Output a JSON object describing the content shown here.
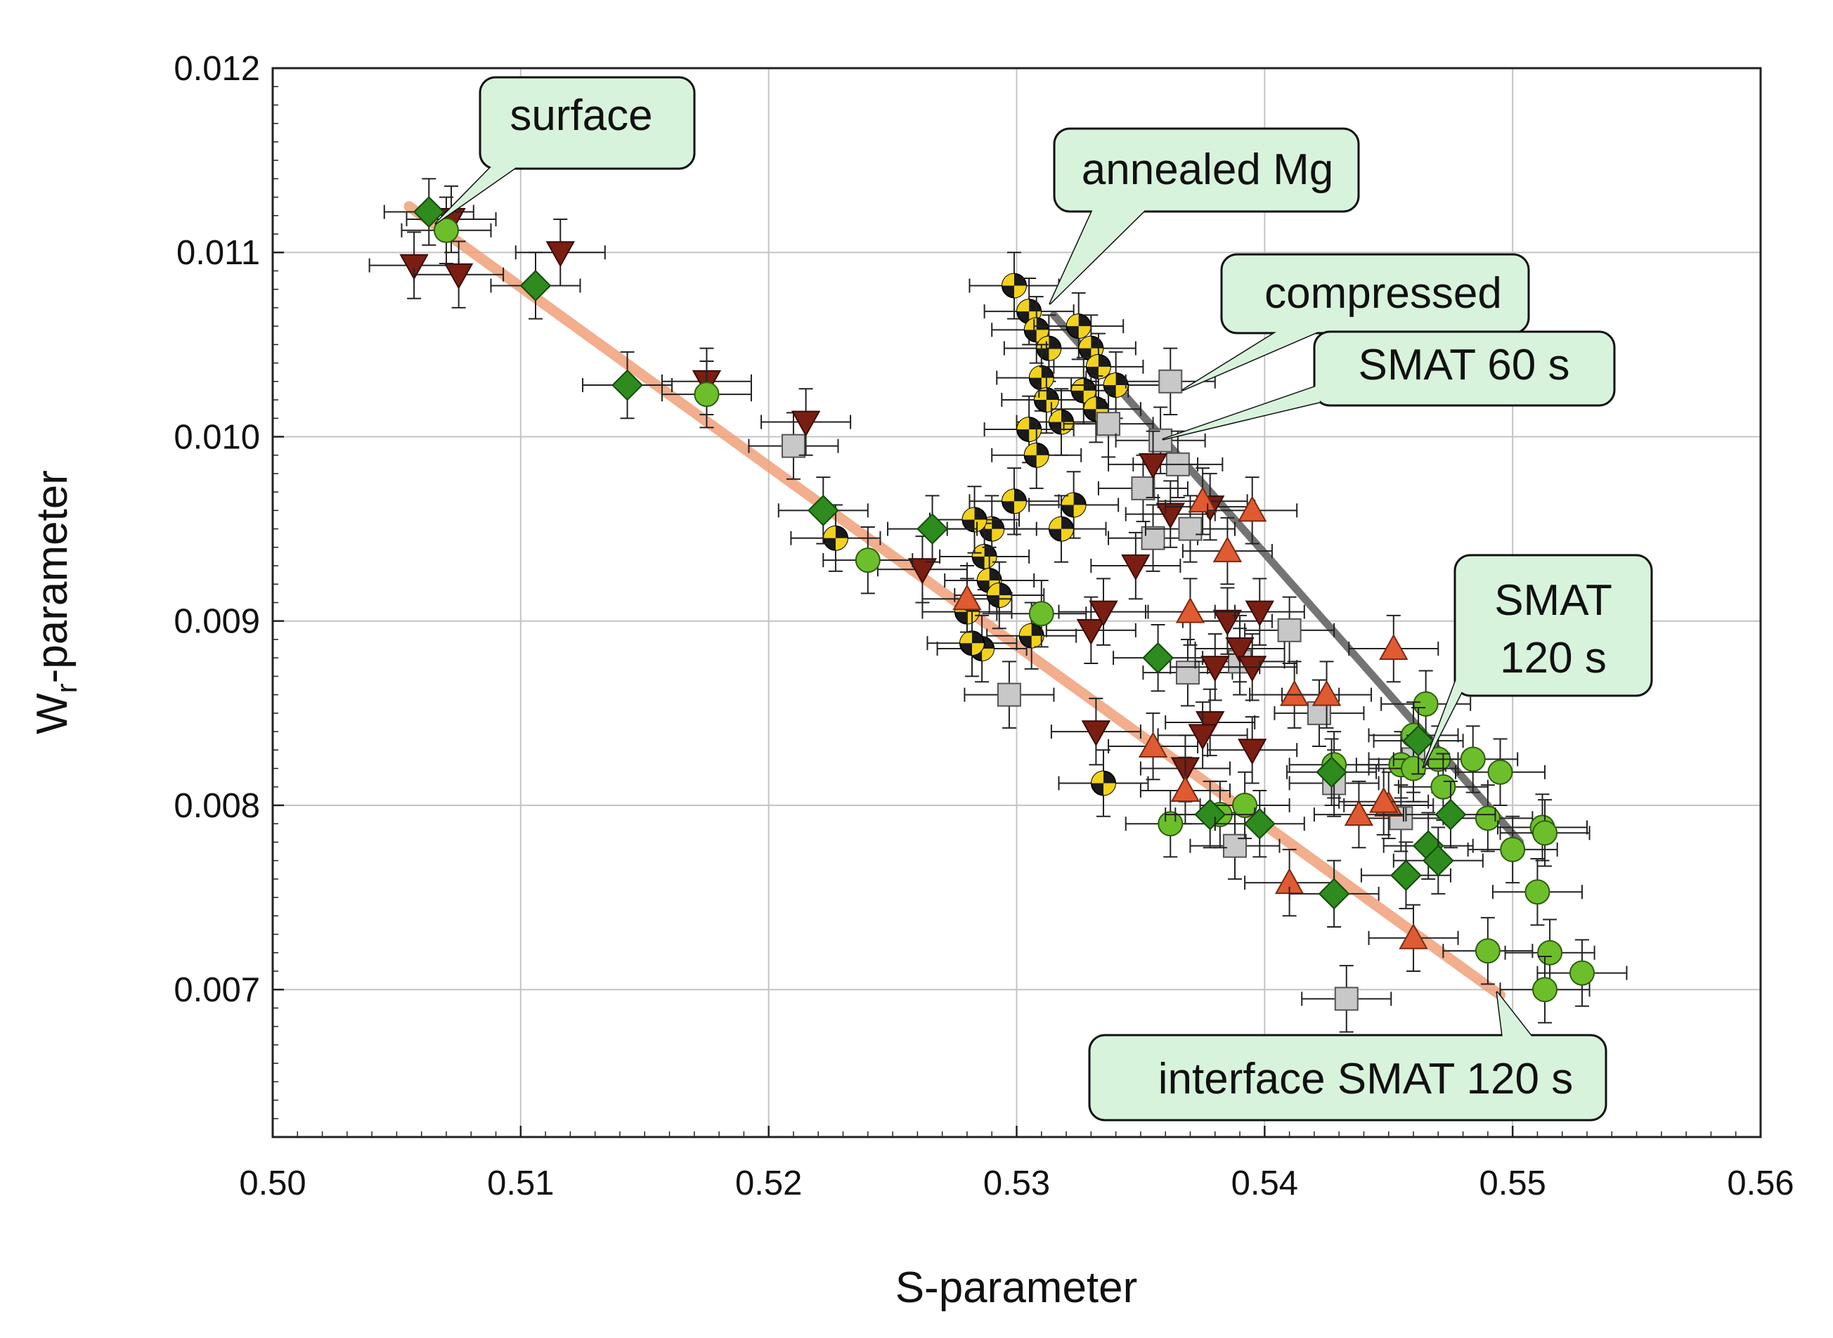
{
  "chart_data": {
    "type": "scatter",
    "title": "",
    "xlabel": "S-parameter",
    "ylabel_main": "W",
    "ylabel_sub": "r",
    "ylabel_rest": "-parameter",
    "xlim": [
      0.5,
      0.56
    ],
    "ylim": [
      0.0062,
      0.012
    ],
    "x_ticks": [
      0.5,
      0.51,
      0.52,
      0.53,
      0.54,
      0.55,
      0.56
    ],
    "x_tick_labels": [
      "0.50",
      "0.51",
      "0.52",
      "0.53",
      "0.54",
      "0.55",
      "0.56"
    ],
    "y_ticks": [
      0.007,
      0.008,
      0.009,
      0.01,
      0.011,
      0.012
    ],
    "y_tick_labels": [
      "0.007",
      "0.008",
      "0.009",
      "0.010",
      "0.011",
      "0.012"
    ],
    "grid": true,
    "error_x": 0.0018,
    "error_y": 0.00018,
    "colors": {
      "annealed": "#1a1a1a",
      "annealed_accent": "#f2d21c",
      "compressed": "#c8c8c8",
      "smat60": "#7a1e12",
      "smat_tri": "#e05a32",
      "smat120": "#6cbf2a",
      "surface_diamond": "#2e8b1e",
      "fit_orange": "#f0a07a",
      "fit_gray": "#666666",
      "callout_fill": "#d8f3dc"
    },
    "series": [
      {
        "name": "annealed Mg",
        "marker": "circle-quadrant",
        "points": [
          [
            0.5299,
            0.01082
          ],
          [
            0.5305,
            0.01068
          ],
          [
            0.5308,
            0.01058
          ],
          [
            0.5313,
            0.01048
          ],
          [
            0.531,
            0.01032
          ],
          [
            0.5312,
            0.0102
          ],
          [
            0.5318,
            0.01008
          ],
          [
            0.5325,
            0.0106
          ],
          [
            0.533,
            0.01048
          ],
          [
            0.5333,
            0.01038
          ],
          [
            0.5327,
            0.01025
          ],
          [
            0.5332,
            0.01015
          ],
          [
            0.534,
            0.01028
          ],
          [
            0.5305,
            0.01004
          ],
          [
            0.5308,
            0.0099
          ],
          [
            0.5299,
            0.00965
          ],
          [
            0.529,
            0.0095
          ],
          [
            0.5287,
            0.00935
          ],
          [
            0.5323,
            0.00963
          ],
          [
            0.5318,
            0.0095
          ],
          [
            0.5283,
            0.00955
          ],
          [
            0.5289,
            0.00922
          ],
          [
            0.5293,
            0.00914
          ],
          [
            0.528,
            0.00905
          ],
          [
            0.5306,
            0.00892
          ],
          [
            0.5286,
            0.00885
          ],
          [
            0.5227,
            0.00945
          ],
          [
            0.5335,
            0.00812
          ],
          [
            0.5282,
            0.00888
          ]
        ]
      },
      {
        "name": "compressed",
        "marker": "square",
        "points": [
          [
            0.521,
            0.00995
          ],
          [
            0.5297,
            0.0086
          ],
          [
            0.5337,
            0.01007
          ],
          [
            0.5351,
            0.00972
          ],
          [
            0.5362,
            0.0103
          ],
          [
            0.5358,
            0.00998
          ],
          [
            0.5365,
            0.00985
          ],
          [
            0.5355,
            0.00945
          ],
          [
            0.537,
            0.0095
          ],
          [
            0.5369,
            0.00872
          ],
          [
            0.539,
            0.00878
          ],
          [
            0.541,
            0.00895
          ],
          [
            0.5422,
            0.0085
          ],
          [
            0.5428,
            0.00812
          ],
          [
            0.5455,
            0.00793
          ],
          [
            0.546,
            0.00825
          ],
          [
            0.5388,
            0.00778
          ],
          [
            0.5433,
            0.00695
          ]
        ]
      },
      {
        "name": "SMAT 60 s",
        "marker": "triangle-down",
        "points": [
          [
            0.5057,
            0.01093
          ],
          [
            0.5075,
            0.01088
          ],
          [
            0.5072,
            0.01118
          ],
          [
            0.5116,
            0.011
          ],
          [
            0.5175,
            0.0103
          ],
          [
            0.5215,
            0.01008
          ],
          [
            0.5262,
            0.00928
          ],
          [
            0.533,
            0.00895
          ],
          [
            0.5335,
            0.00905
          ],
          [
            0.5348,
            0.0093
          ],
          [
            0.5362,
            0.00958
          ],
          [
            0.5378,
            0.00962
          ],
          [
            0.5385,
            0.009
          ],
          [
            0.539,
            0.00885
          ],
          [
            0.5395,
            0.00875
          ],
          [
            0.5378,
            0.00845
          ],
          [
            0.5398,
            0.00905
          ],
          [
            0.5332,
            0.0084
          ],
          [
            0.5368,
            0.0082
          ],
          [
            0.5375,
            0.00838
          ],
          [
            0.5395,
            0.0083
          ],
          [
            0.538,
            0.00875
          ],
          [
            0.5355,
            0.00985
          ]
        ]
      },
      {
        "name": "SMAT (triangle)",
        "marker": "triangle-up",
        "points": [
          [
            0.528,
            0.00912
          ],
          [
            0.5355,
            0.00832
          ],
          [
            0.5368,
            0.00808
          ],
          [
            0.5385,
            0.00938
          ],
          [
            0.5375,
            0.00965
          ],
          [
            0.5395,
            0.0096
          ],
          [
            0.5412,
            0.0086
          ],
          [
            0.5425,
            0.0086
          ],
          [
            0.5452,
            0.00885
          ],
          [
            0.545,
            0.008
          ],
          [
            0.541,
            0.00758
          ],
          [
            0.546,
            0.00728
          ],
          [
            0.5438,
            0.00795
          ],
          [
            0.5448,
            0.00802
          ],
          [
            0.537,
            0.00905
          ]
        ]
      },
      {
        "name": "SMAT 120 s",
        "marker": "circle",
        "points": [
          [
            0.507,
            0.01112
          ],
          [
            0.5175,
            0.01023
          ],
          [
            0.524,
            0.00933
          ],
          [
            0.531,
            0.00904
          ],
          [
            0.5362,
            0.0079
          ],
          [
            0.5382,
            0.00795
          ],
          [
            0.5392,
            0.008
          ],
          [
            0.5428,
            0.00822
          ],
          [
            0.5455,
            0.00822
          ],
          [
            0.5465,
            0.00855
          ],
          [
            0.546,
            0.00838
          ],
          [
            0.547,
            0.00825
          ],
          [
            0.5484,
            0.00825
          ],
          [
            0.5495,
            0.00818
          ],
          [
            0.549,
            0.00793
          ],
          [
            0.55,
            0.00776
          ],
          [
            0.5512,
            0.00788
          ],
          [
            0.5513,
            0.00785
          ],
          [
            0.551,
            0.00753
          ],
          [
            0.549,
            0.00721
          ],
          [
            0.5515,
            0.0072
          ],
          [
            0.5513,
            0.007
          ],
          [
            0.5528,
            0.00709
          ],
          [
            0.546,
            0.0082
          ],
          [
            0.5472,
            0.0081
          ]
        ]
      },
      {
        "name": "surface (diamond)",
        "marker": "diamond",
        "points": [
          [
            0.5063,
            0.01122
          ],
          [
            0.5106,
            0.01082
          ],
          [
            0.5143,
            0.01028
          ],
          [
            0.5222,
            0.0096
          ],
          [
            0.5266,
            0.0095
          ],
          [
            0.5357,
            0.0088
          ],
          [
            0.5378,
            0.00795
          ],
          [
            0.5398,
            0.0079
          ],
          [
            0.5428,
            0.00752
          ],
          [
            0.5427,
            0.00818
          ],
          [
            0.5457,
            0.00762
          ],
          [
            0.5466,
            0.00778
          ],
          [
            0.547,
            0.0077
          ],
          [
            0.5475,
            0.00795
          ],
          [
            0.5462,
            0.00835
          ]
        ]
      }
    ],
    "fit_lines": [
      {
        "name": "orange trend",
        "x": [
          0.5055,
          0.5495
        ],
        "y": [
          0.01125,
          0.00697
        ]
      },
      {
        "name": "gray trend",
        "x": [
          0.5315,
          0.5503
        ],
        "y": [
          0.01066,
          0.0078
        ]
      }
    ],
    "annotations": [
      {
        "text": "surface",
        "lines": [
          "surface"
        ]
      },
      {
        "text": "annealed Mg",
        "lines": [
          "annealed Mg"
        ]
      },
      {
        "text": "compressed",
        "lines": [
          "compressed"
        ]
      },
      {
        "text": "SMAT 60 s",
        "lines": [
          "SMAT 60 s"
        ]
      },
      {
        "text": "SMAT 120 s",
        "lines": [
          "SMAT",
          "120 s"
        ]
      },
      {
        "text": "interface SMAT 120 s",
        "lines": [
          "interface SMAT 120 s"
        ]
      }
    ]
  }
}
